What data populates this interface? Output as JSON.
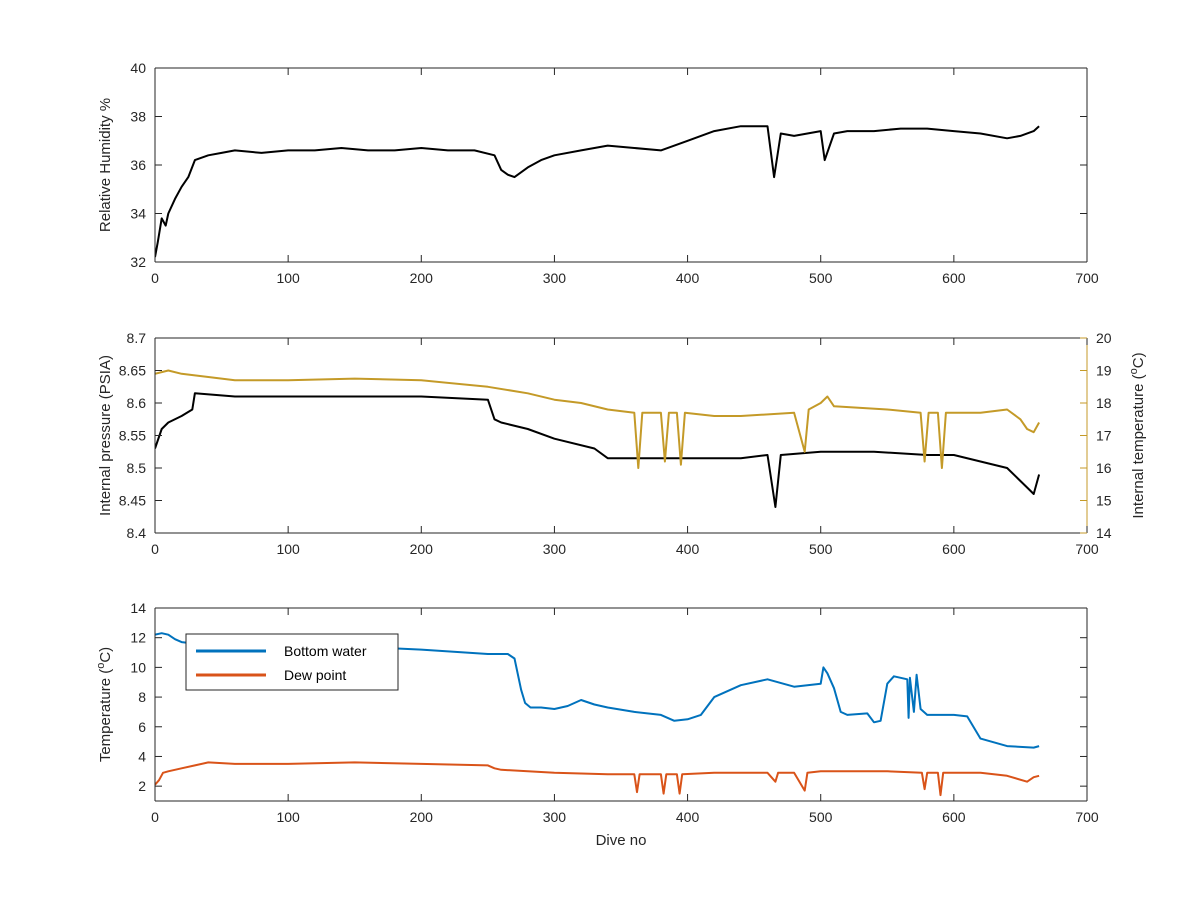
{
  "chart_data": [
    {
      "type": "line",
      "ylabel": "Relative Humidity %",
      "xlim": [
        0,
        700
      ],
      "ylim": [
        32,
        40
      ],
      "xticks": [
        0,
        100,
        200,
        300,
        400,
        500,
        600,
        700
      ],
      "yticks": [
        32,
        34,
        36,
        38,
        40
      ],
      "series": [
        {
          "color": "#000000",
          "x": [
            0,
            2,
            5,
            8,
            10,
            15,
            20,
            25,
            30,
            40,
            50,
            60,
            80,
            100,
            120,
            140,
            160,
            180,
            200,
            220,
            240,
            255,
            260,
            265,
            270,
            280,
            290,
            300,
            320,
            340,
            360,
            380,
            400,
            420,
            440,
            460,
            465,
            470,
            480,
            500,
            503,
            510,
            520,
            540,
            560,
            580,
            600,
            620,
            640,
            650,
            660,
            664
          ],
          "y": [
            32.2,
            32.8,
            33.8,
            33.5,
            34.0,
            34.6,
            35.1,
            35.5,
            36.2,
            36.4,
            36.5,
            36.6,
            36.5,
            36.6,
            36.6,
            36.7,
            36.6,
            36.6,
            36.7,
            36.6,
            36.6,
            36.4,
            35.8,
            35.6,
            35.5,
            35.9,
            36.2,
            36.4,
            36.6,
            36.8,
            36.7,
            36.6,
            37.0,
            37.4,
            37.6,
            37.6,
            35.5,
            37.3,
            37.2,
            37.4,
            36.2,
            37.3,
            37.4,
            37.4,
            37.5,
            37.5,
            37.4,
            37.3,
            37.1,
            37.2,
            37.4,
            37.6
          ]
        }
      ]
    },
    {
      "type": "line",
      "ylabel": "Internal pressure (PSIA)",
      "ylabel_right": "Internal temperature (°C)",
      "xlim": [
        0,
        700
      ],
      "ylim": [
        8.4,
        8.7
      ],
      "ylim_right": [
        14,
        20
      ],
      "xticks": [
        0,
        100,
        200,
        300,
        400,
        500,
        600,
        700
      ],
      "yticks": [
        8.4,
        8.45,
        8.5,
        8.55,
        8.6,
        8.65,
        8.7
      ],
      "yticks_right": [
        14,
        15,
        16,
        17,
        18,
        19,
        20
      ],
      "series": [
        {
          "axis": "left",
          "color": "#000000",
          "x": [
            0,
            5,
            10,
            20,
            28,
            30,
            60,
            100,
            150,
            200,
            250,
            255,
            260,
            280,
            300,
            330,
            340,
            360,
            400,
            440,
            460,
            466,
            470,
            500,
            540,
            580,
            600,
            620,
            640,
            655,
            660,
            664
          ],
          "y": [
            8.53,
            8.56,
            8.57,
            8.58,
            8.59,
            8.615,
            8.61,
            8.61,
            8.61,
            8.61,
            8.605,
            8.575,
            8.57,
            8.56,
            8.545,
            8.53,
            8.515,
            8.515,
            8.515,
            8.515,
            8.52,
            8.44,
            8.52,
            8.525,
            8.525,
            8.52,
            8.52,
            8.51,
            8.5,
            8.47,
            8.46,
            8.49
          ]
        },
        {
          "axis": "right",
          "color": "#c49a28",
          "x": [
            0,
            10,
            20,
            30,
            40,
            60,
            100,
            150,
            200,
            250,
            280,
            300,
            320,
            340,
            360,
            363,
            366,
            380,
            383,
            386,
            392,
            395,
            398,
            420,
            440,
            480,
            488,
            491,
            500,
            505,
            510,
            550,
            575,
            578,
            581,
            588,
            591,
            594,
            620,
            640,
            650,
            655,
            660,
            664
          ],
          "y": [
            18.9,
            19.0,
            18.9,
            18.85,
            18.8,
            18.7,
            18.7,
            18.75,
            18.7,
            18.5,
            18.3,
            18.1,
            18.0,
            17.8,
            17.7,
            16.0,
            17.7,
            17.7,
            16.2,
            17.7,
            17.7,
            16.1,
            17.7,
            17.6,
            17.6,
            17.7,
            16.5,
            17.8,
            18.0,
            18.2,
            17.9,
            17.8,
            17.7,
            16.2,
            17.7,
            17.7,
            16.0,
            17.7,
            17.7,
            17.8,
            17.5,
            17.2,
            17.1,
            17.4
          ]
        }
      ]
    },
    {
      "type": "line",
      "xlabel": "Dive no",
      "ylabel": "Temperature (°C)",
      "xlim": [
        0,
        700
      ],
      "ylim": [
        1,
        14
      ],
      "xticks": [
        0,
        100,
        200,
        300,
        400,
        500,
        600,
        700
      ],
      "yticks": [
        2,
        4,
        6,
        8,
        10,
        12,
        14
      ],
      "legend_location": "top-left",
      "series": [
        {
          "name": "Bottom water",
          "color": "#0072bd",
          "x": [
            0,
            5,
            10,
            15,
            20,
            30,
            50,
            100,
            150,
            200,
            250,
            265,
            270,
            275,
            278,
            282,
            290,
            300,
            310,
            320,
            330,
            340,
            360,
            380,
            390,
            400,
            410,
            420,
            440,
            460,
            480,
            500,
            502,
            505,
            510,
            515,
            520,
            535,
            540,
            545,
            550,
            555,
            565,
            566,
            567,
            570,
            572,
            575,
            580,
            600,
            610,
            620,
            640,
            660,
            664
          ],
          "y": [
            12.2,
            12.3,
            12.2,
            11.9,
            11.7,
            11.6,
            11.5,
            11.4,
            11.4,
            11.2,
            10.9,
            10.9,
            10.6,
            8.5,
            7.6,
            7.3,
            7.3,
            7.2,
            7.4,
            7.8,
            7.5,
            7.3,
            7.0,
            6.8,
            6.4,
            6.5,
            6.8,
            8.0,
            8.8,
            9.2,
            8.7,
            8.9,
            10.0,
            9.6,
            8.6,
            7.0,
            6.8,
            6.9,
            6.3,
            6.4,
            8.9,
            9.4,
            9.2,
            6.6,
            9.3,
            7.0,
            9.5,
            7.2,
            6.8,
            6.8,
            6.7,
            5.2,
            4.7,
            4.6,
            4.7
          ]
        },
        {
          "name": "Dew point",
          "color": "#d95319",
          "x": [
            0,
            3,
            6,
            10,
            20,
            30,
            40,
            60,
            100,
            150,
            200,
            250,
            255,
            260,
            280,
            300,
            340,
            360,
            362,
            364,
            380,
            382,
            384,
            392,
            394,
            396,
            420,
            460,
            466,
            468,
            480,
            488,
            490,
            500,
            550,
            576,
            578,
            580,
            588,
            590,
            592,
            620,
            640,
            655,
            660,
            664
          ],
          "y": [
            2.1,
            2.4,
            2.9,
            3.0,
            3.2,
            3.4,
            3.6,
            3.5,
            3.5,
            3.6,
            3.5,
            3.4,
            3.2,
            3.1,
            3.0,
            2.9,
            2.8,
            2.8,
            1.6,
            2.8,
            2.8,
            1.5,
            2.8,
            2.8,
            1.5,
            2.8,
            2.9,
            2.9,
            2.3,
            2.9,
            2.9,
            1.7,
            2.9,
            3.0,
            3.0,
            2.9,
            1.8,
            2.9,
            2.9,
            1.4,
            2.9,
            2.9,
            2.7,
            2.3,
            2.6,
            2.7
          ]
        }
      ]
    }
  ]
}
